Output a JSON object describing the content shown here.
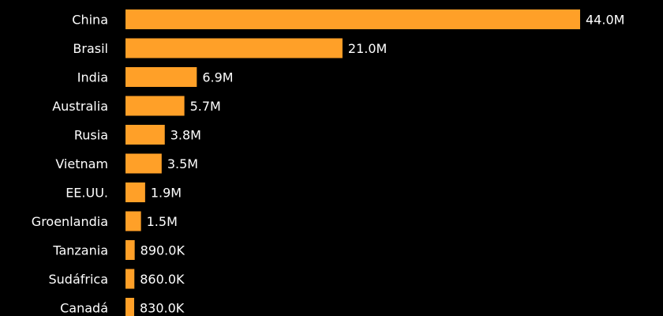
{
  "chart_data": {
    "type": "bar",
    "orientation": "horizontal",
    "title": "",
    "xlabel": "",
    "ylabel": "",
    "grid": false,
    "legend": "none",
    "bar_color": "#FFA028",
    "background_color": "#000000",
    "text_color": "#FFFFFF",
    "xlim": [
      0,
      44000000
    ],
    "categories": [
      "China",
      "Brasil",
      "India",
      "Australia",
      "Rusia",
      "Vietnam",
      "EE.UU.",
      "Groenlandia",
      "Tanzania",
      "Sudáfrica",
      "Canadá"
    ],
    "values": [
      44000000,
      21000000,
      6900000,
      5700000,
      3800000,
      3500000,
      1900000,
      1500000,
      890000,
      860000,
      830000
    ],
    "value_labels": [
      "44.0M",
      "21.0M",
      "6.9M",
      "5.7M",
      "3.8M",
      "3.5M",
      "1.9M",
      "1.5M",
      "890.0K",
      "860.0K",
      "830.0K"
    ]
  }
}
